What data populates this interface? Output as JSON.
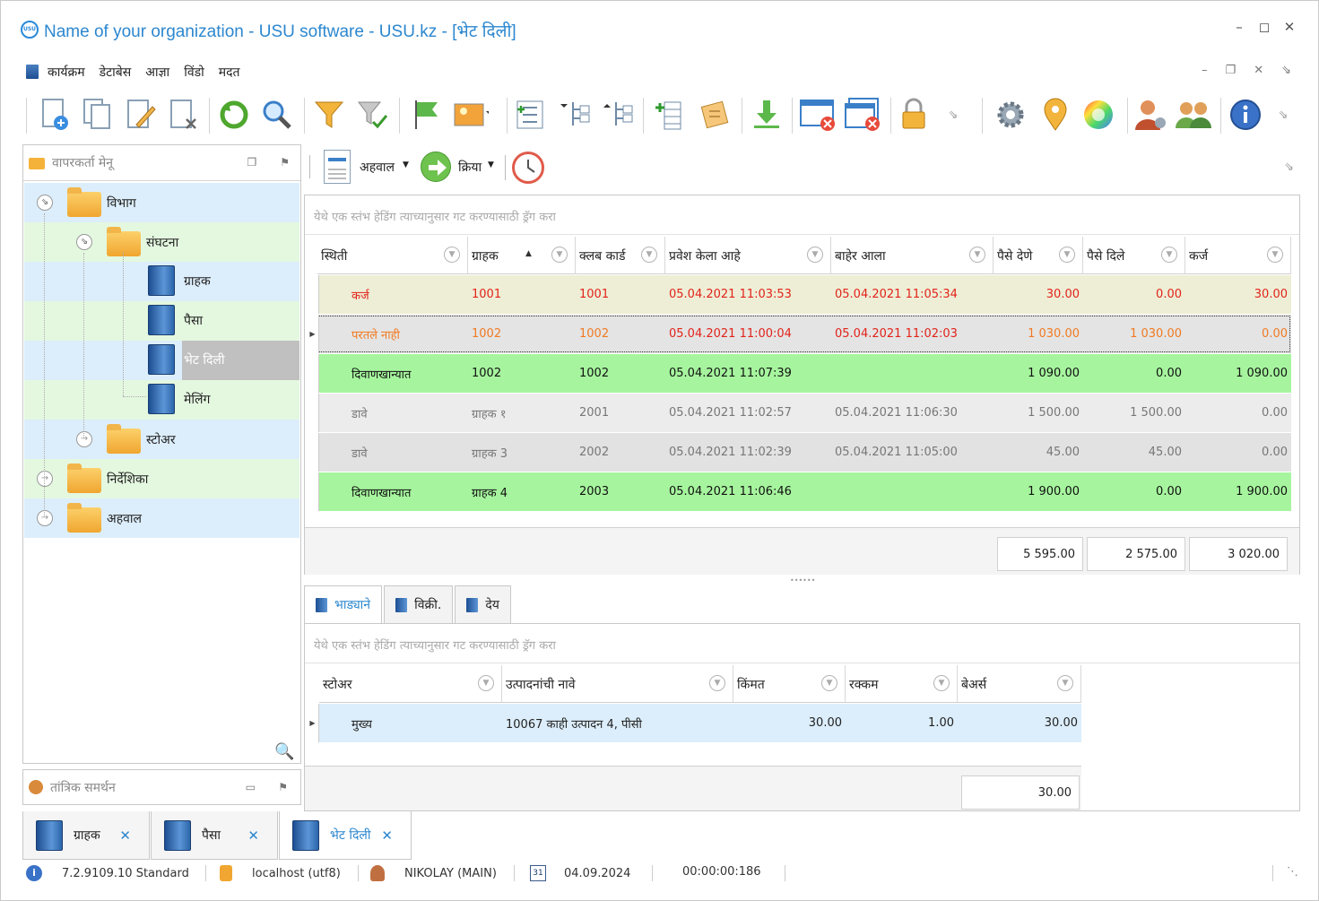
{
  "window": {
    "title": "Name of your organization - USU software - USU.kz - [भेट दिली]",
    "logo_text": "USU"
  },
  "menu": [
    "कार्यक्रम",
    "डेटाबेस",
    "आज्ञा",
    "विंडो",
    "मदत"
  ],
  "left_panel": {
    "header": "वापरकर्ता मेनू",
    "tree": [
      {
        "label": "विभाग",
        "type": "folder",
        "expanded": true
      },
      {
        "label": "संघटना",
        "type": "folder",
        "expanded": true
      },
      {
        "label": "ग्राहक",
        "type": "book"
      },
      {
        "label": "पैसा",
        "type": "book"
      },
      {
        "label": "भेट दिली",
        "type": "book",
        "selected": true
      },
      {
        "label": "मेलिंग",
        "type": "book"
      },
      {
        "label": "स्टोअर",
        "type": "folder"
      },
      {
        "label": "निर्देशिका",
        "type": "folder"
      },
      {
        "label": "अहवाल",
        "type": "folder"
      }
    ]
  },
  "tech_panel": {
    "header": "तांत्रिक समर्थन"
  },
  "main_toolbar": {
    "reports": "अहवाल",
    "actions": "क्रिया"
  },
  "main_grid": {
    "group_hint": "येथे एक स्तंभ हेडिंग त्याच्यानुसार गट करण्यासाठी ड्रॅग करा",
    "columns": [
      "स्थिती",
      "ग्राहक",
      "क्लब कार्ड",
      "प्रवेश केला आहे",
      "बाहेर आला",
      "पैसे देणे",
      "पैसे दिले",
      "कर्ज"
    ],
    "rows": [
      {
        "status": "कर्ज",
        "client": "1001",
        "card": "1001",
        "entered": "05.04.2021 11:03:53",
        "exited": "05.04.2021 11:05:34",
        "to_pay": "30.00",
        "paid": "0.00",
        "debt": "30.00",
        "style": "debt"
      },
      {
        "status": "परतले नाही",
        "client": "1002",
        "card": "1002",
        "entered": "05.04.2021 11:00:04",
        "exited": "05.04.2021 11:02:03",
        "to_pay": "1 030.00",
        "paid": "1 030.00",
        "debt": "0.00",
        "style": "notreturned"
      },
      {
        "status": "दिवाणखान्यात",
        "client": "1002",
        "card": "1002",
        "entered": "05.04.2021 11:07:39",
        "exited": "",
        "to_pay": "1 090.00",
        "paid": "0.00",
        "debt": "1 090.00",
        "style": "inside"
      },
      {
        "status": "डावे",
        "client": "ग्राहक १",
        "card": "2001",
        "entered": "05.04.2021 11:02:57",
        "exited": "05.04.2021 11:06:30",
        "to_pay": "1 500.00",
        "paid": "1 500.00",
        "debt": "0.00",
        "style": "left"
      },
      {
        "status": "डावे",
        "client": "ग्राहक 3",
        "card": "2002",
        "entered": "05.04.2021 11:02:39",
        "exited": "05.04.2021 11:05:00",
        "to_pay": "45.00",
        "paid": "45.00",
        "debt": "0.00",
        "style": "left"
      },
      {
        "status": "दिवाणखान्यात",
        "client": "ग्राहक 4",
        "card": "2003",
        "entered": "05.04.2021 11:06:46",
        "exited": "",
        "to_pay": "1 900.00",
        "paid": "0.00",
        "debt": "1 900.00",
        "style": "inside"
      }
    ],
    "totals": {
      "to_pay": "5 595.00",
      "paid": "2 575.00",
      "debt": "3 020.00"
    }
  },
  "sub_tabs": [
    "भाड्याने",
    "विक्री.",
    "देय"
  ],
  "sub_grid": {
    "group_hint": "येथे एक स्तंभ हेडिंग त्याच्यानुसार गट करण्यासाठी ड्रॅग करा",
    "columns": [
      "स्टोअर",
      "उत्पादनांची नावे",
      "किंमत",
      "रक्कम",
      "बेअर्स"
    ],
    "rows": [
      {
        "store": "मुख्य",
        "product": "10067 काही उत्पादन 4, पीसी",
        "price": "30.00",
        "qty": "1.00",
        "sum": "30.00"
      }
    ],
    "total": "30.00"
  },
  "bottom_tabs": [
    "ग्राहक",
    "पैसा",
    "भेट दिली"
  ],
  "status": {
    "version": "7.2.9109.10 Standard",
    "db": "localhost (utf8)",
    "user": "NIKOLAY (MAIN)",
    "date": "04.09.2024",
    "timer": "00:00:00:186",
    "calendar_day": "31"
  },
  "colors": {
    "accent": "#2c87cf",
    "row_debt_bg": "#eeeed6",
    "row_debt_fg": "#e2231a",
    "row_nr_fg": "#f07a22",
    "row_inside_bg": "#a6f59e",
    "row_left_bg": "#ececec"
  }
}
